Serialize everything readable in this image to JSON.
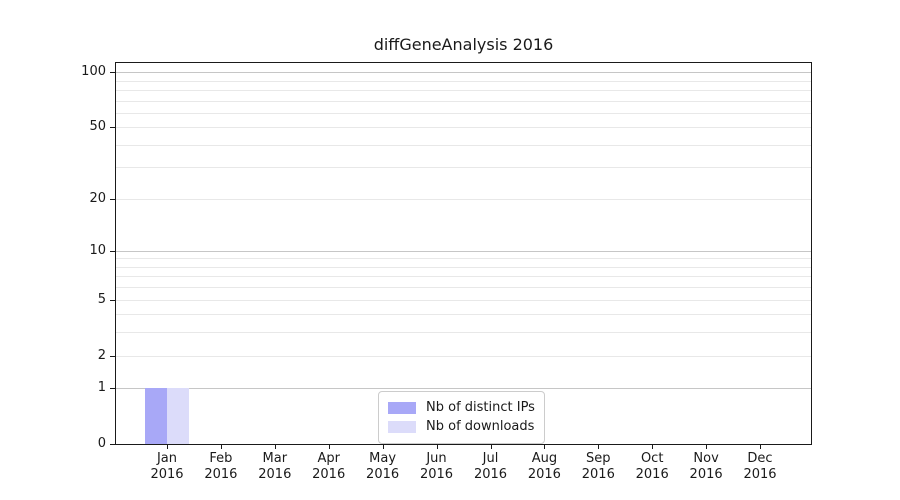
{
  "chart_data": {
    "type": "bar",
    "title": "diffGeneAnalysis 2016",
    "categories": [
      "Jan",
      "Feb",
      "Mar",
      "Apr",
      "May",
      "Jun",
      "Jul",
      "Aug",
      "Sep",
      "Oct",
      "Nov",
      "Dec"
    ],
    "x_year_label": "2016",
    "series": [
      {
        "name": "Nb of distinct IPs",
        "color": "#a8a8f7",
        "values": [
          1,
          0,
          0,
          0,
          0,
          0,
          0,
          0,
          0,
          0,
          0,
          0
        ]
      },
      {
        "name": "Nb of downloads",
        "color": "#dcdcfa",
        "values": [
          1,
          0,
          0,
          0,
          0,
          0,
          0,
          0,
          0,
          0,
          0,
          0
        ]
      }
    ],
    "yscale": "log1p",
    "ylim": [
      0,
      112
    ],
    "yticks": [
      0,
      1,
      2,
      5,
      10,
      20,
      50,
      100
    ],
    "gridlines": {
      "major": [
        1,
        10,
        100
      ],
      "minor": [
        2,
        3,
        4,
        5,
        6,
        7,
        8,
        9,
        20,
        30,
        40,
        50,
        60,
        70,
        80,
        90
      ]
    },
    "legend": {
      "position": "lower-center"
    },
    "grid": true
  },
  "colors": {
    "spine": "#1a1a1a",
    "major_grid": "#c6c6c6",
    "minor_grid": "#e8e8e8",
    "legend_border": "#cccccc",
    "background": "#ffffff"
  }
}
